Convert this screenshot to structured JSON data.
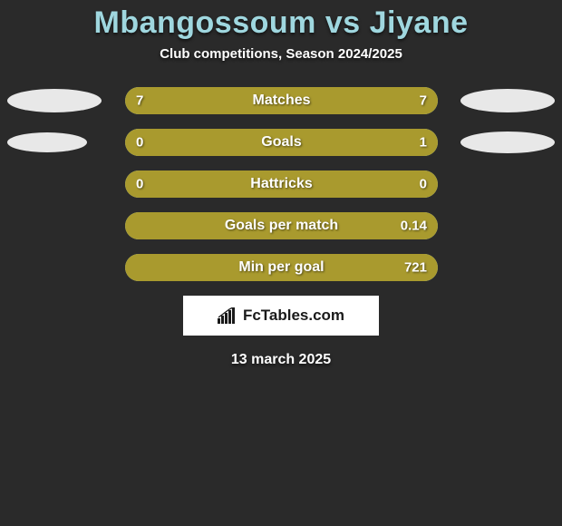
{
  "background_color": "#2a2a2a",
  "title": {
    "player1": "Mbangossoum",
    "vs": "vs",
    "player2": "Jiyane",
    "color": "#9fd7df",
    "fontsize": 34
  },
  "subtitle": {
    "text": "Club competitions, Season 2024/2025",
    "color": "#ffffff",
    "fontsize": 15
  },
  "ellipses": {
    "row0": {
      "left_w": 104,
      "left_h": 26,
      "right_w": 104,
      "right_h": 26
    },
    "row1": {
      "left_w": 88,
      "left_h": 22,
      "right_w": 104,
      "right_h": 24
    },
    "color": "#e8e8e8"
  },
  "bars": {
    "track_color": "#98d3dc",
    "left_fill_color": "#a99a2e",
    "right_fill_color": "#a99a2e",
    "value_color": "#ffffff",
    "label_color": "#ffffff",
    "value_fontsize": 15,
    "label_fontsize": 16,
    "rows": [
      {
        "label": "Matches",
        "left_val": "7",
        "right_val": "7",
        "left_pct": 50,
        "right_pct": 50,
        "show_ellipses": true,
        "ellipse_key": "row0"
      },
      {
        "label": "Goals",
        "left_val": "0",
        "right_val": "1",
        "left_pct": 20,
        "right_pct": 80,
        "show_ellipses": true,
        "ellipse_key": "row1"
      },
      {
        "label": "Hattricks",
        "left_val": "0",
        "right_val": "0",
        "left_pct": 100,
        "right_pct": 0,
        "show_ellipses": false
      },
      {
        "label": "Goals per match",
        "left_val": "",
        "right_val": "0.14",
        "left_pct": 100,
        "right_pct": 0,
        "show_ellipses": false
      },
      {
        "label": "Min per goal",
        "left_val": "",
        "right_val": "721",
        "left_pct": 100,
        "right_pct": 0,
        "show_ellipses": false
      }
    ]
  },
  "logo": {
    "bg_color": "#ffffff",
    "text_color": "#1a1a1a",
    "text": "FcTables.com",
    "fontsize": 17
  },
  "date": {
    "text": "13 march 2025",
    "color": "#ffffff",
    "fontsize": 16
  }
}
